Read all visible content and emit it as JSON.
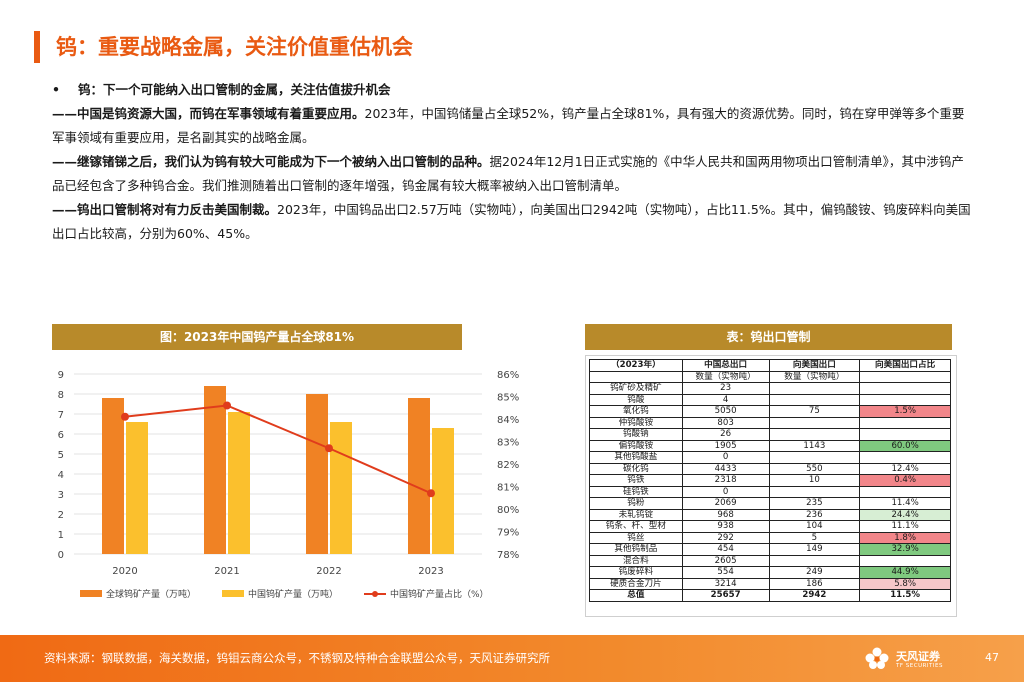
{
  "title": "钨：重要战略金属，关注价值重估机会",
  "intro": {
    "bullet": "•",
    "bullet_text": "钨：下一个可能纳入出口管制的金属，关注估值拔升机会",
    "p1_bold": "——中国是钨资源大国，而钨在军事领域有着重要应用。",
    "p1_rest": "2023年，中国钨储量占全球52%，钨产量占全球81%，具有强大的资源优势。同时，钨在穿甲弹等多个重要军事领域有重要应用，是名副其实的战略金属。",
    "p2_bold": "——继镓锗锑之后，我们认为钨有较大可能成为下一个被纳入出口管制的品种。",
    "p2_rest": "据2024年12月1日正式实施的《中华人民共和国两用物项出口管制清单》，其中涉钨产品已经包含了多种钨合金。我们推测随着出口管制的逐年增强，钨金属有较大概率被纳入出口管制清单。",
    "p3_bold": "——钨出口管制将对有力反击美国制裁。",
    "p3_rest": "2023年，中国钨品出口2.57万吨（实物吨），向美国出口2942吨（实物吨），占比11.5%。其中，偏钨酸铵、钨废碎料向美国出口占比较高，分别为60%、45%。"
  },
  "figure_title": "图：2023年中国钨产量占全球81%",
  "table_title": "表：钨出口管制",
  "chart_data": {
    "type": "bar",
    "categories": [
      "2020",
      "2021",
      "2022",
      "2023"
    ],
    "series": [
      {
        "name": "全球钨矿产量（万吨）",
        "values": [
          7.8,
          8.4,
          8.0,
          7.8
        ],
        "color": "#f08224",
        "axis": "left"
      },
      {
        "name": "中国钨矿产量（万吨）",
        "values": [
          6.6,
          7.1,
          6.6,
          6.3
        ],
        "color": "#fbc02d",
        "axis": "left"
      },
      {
        "name": "中国钨矿产量占比（%）",
        "values": [
          84.1,
          84.6,
          82.7,
          80.7
        ],
        "color": "#e03c1c",
        "axis": "right",
        "kind": "line"
      }
    ],
    "ylim": [
      0,
      9
    ],
    "yticks": [
      "0",
      "1",
      "2",
      "3",
      "4",
      "5",
      "6",
      "7",
      "8",
      "9"
    ],
    "y2lim": [
      78,
      86
    ],
    "y2ticks": [
      "78%",
      "79%",
      "80%",
      "81%",
      "82%",
      "83%",
      "84%",
      "85%",
      "86%"
    ],
    "grid": true,
    "legend": "bottom"
  },
  "table": {
    "headers": [
      "（2023年）",
      "中国总出口",
      "向美国出口",
      "向美国出口占比"
    ],
    "subheaders": [
      "",
      "数量（实物吨）",
      "数量（实物吨）",
      ""
    ],
    "rows": [
      {
        "name": "钨矿砂及精矿",
        "total": "23",
        "us": "",
        "pct": "",
        "hl": ""
      },
      {
        "name": "钨酸",
        "total": "4",
        "us": "",
        "pct": "",
        "hl": ""
      },
      {
        "name": "氧化钨",
        "total": "5050",
        "us": "75",
        "pct": "1.5%",
        "hl": "red"
      },
      {
        "name": "仲钨酸铵",
        "total": "803",
        "us": "",
        "pct": "",
        "hl": ""
      },
      {
        "name": "钨酸钠",
        "total": "26",
        "us": "",
        "pct": "",
        "hl": ""
      },
      {
        "name": "偏钨酸铵",
        "total": "1905",
        "us": "1143",
        "pct": "60.0%",
        "hl": "green"
      },
      {
        "name": "其他钨酸盐",
        "total": "0",
        "us": "",
        "pct": "",
        "hl": ""
      },
      {
        "name": "碳化钨",
        "total": "4433",
        "us": "550",
        "pct": "12.4%",
        "hl": ""
      },
      {
        "name": "钨铁",
        "total": "2318",
        "us": "10",
        "pct": "0.4%",
        "hl": "red"
      },
      {
        "name": "硅钨铁",
        "total": "0",
        "us": "",
        "pct": "",
        "hl": ""
      },
      {
        "name": "钨粉",
        "total": "2069",
        "us": "235",
        "pct": "11.4%",
        "hl": ""
      },
      {
        "name": "未轧钨锭",
        "total": "968",
        "us": "236",
        "pct": "24.4%",
        "hl": "lgreen"
      },
      {
        "name": "钨条、杆、型材",
        "total": "938",
        "us": "104",
        "pct": "11.1%",
        "hl": ""
      },
      {
        "name": "钨丝",
        "total": "292",
        "us": "5",
        "pct": "1.8%",
        "hl": "red"
      },
      {
        "name": "其他钨制品",
        "total": "454",
        "us": "149",
        "pct": "32.9%",
        "hl": "green"
      },
      {
        "name": "混合料",
        "total": "2605",
        "us": "",
        "pct": "",
        "hl": ""
      },
      {
        "name": "钨废碎料",
        "total": "554",
        "us": "249",
        "pct": "44.9%",
        "hl": "green"
      },
      {
        "name": "硬质合金刀片",
        "total": "3214",
        "us": "186",
        "pct": "5.8%",
        "hl": "pink"
      }
    ],
    "total_row": {
      "name": "总值",
      "total": "25657",
      "us": "2942",
      "pct": "11.5%"
    }
  },
  "footer": {
    "source": "资料来源：钢联数据，海关数据，钨钼云商公众号，不锈钢及特种合金联盟公众号，天风证券研究所",
    "logo_cn": "天风证券",
    "logo_en": "TF SECURITIES",
    "page": "47"
  },
  "colors": {
    "accent": "#e95a12",
    "panel": "#b88a2a",
    "footer": "#f06a14"
  }
}
